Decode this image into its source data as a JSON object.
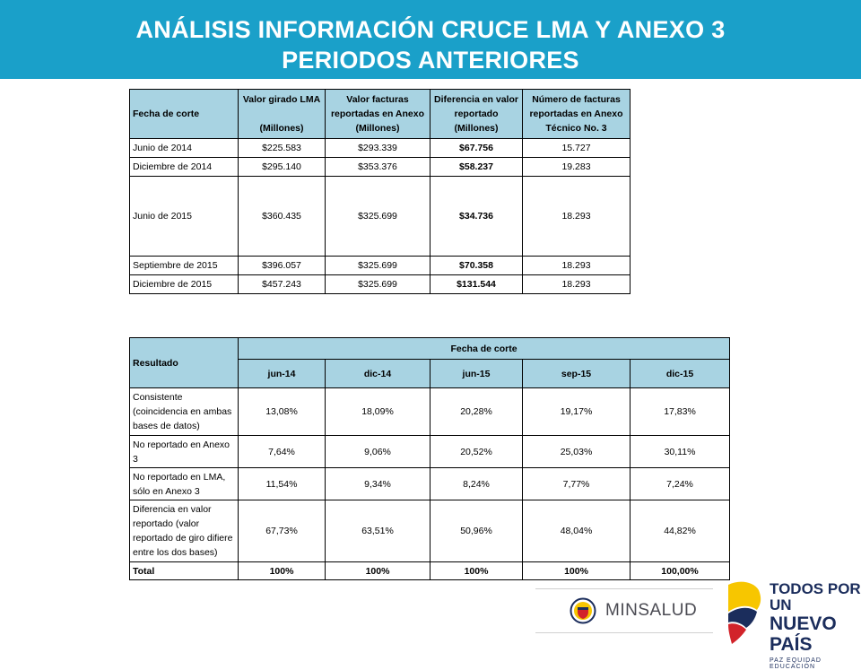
{
  "title": {
    "line1": "ANÁLISIS INFORMACIÓN CRUCE LMA Y ANEXO 3",
    "line2": "PERIODOS ANTERIORES"
  },
  "table1": {
    "headers": [
      {
        "main": "Fecha de corte",
        "sub": ""
      },
      {
        "main": "Valor girado LMA",
        "sub": "(Millones)"
      },
      {
        "main": "Valor facturas reportadas en Anexo",
        "sub": "(Millones)"
      },
      {
        "main": "Diferencia en valor reportado",
        "sub": "(Millones)"
      },
      {
        "main": "Número de facturas reportadas en Anexo Técnico No. 3",
        "sub": ""
      }
    ],
    "rows": [
      {
        "fecha": "Junio de 2014",
        "girado": "$225.583",
        "facturas": "$293.339",
        "diferencia": "$67.756",
        "numero": "15.727"
      },
      {
        "fecha": "Diciembre de 2014",
        "girado": "$295.140",
        "facturas": "$353.376",
        "diferencia": "$58.237",
        "numero": "19.283"
      },
      {
        "fecha": "Junio de 2015",
        "girado": "$360.435",
        "facturas": "$325.699",
        "diferencia": "$34.736",
        "numero": "18.293"
      },
      {
        "fecha": "Septiembre de 2015",
        "girado": "$396.057",
        "facturas": "$325.699",
        "diferencia": "$70.358",
        "numero": "18.293"
      },
      {
        "fecha": "Diciembre de 2015",
        "girado": "$457.243",
        "facturas": "$325.699",
        "diferencia": "$131.544",
        "numero": "18.293"
      }
    ]
  },
  "table2": {
    "resultado_label": "Resultado",
    "fecha_label": "Fecha de corte",
    "periods": [
      "jun-14",
      "dic-14",
      "jun-15",
      "sep-15",
      "dic-15"
    ],
    "rows": [
      {
        "label": "Consistente (coincidencia en ambas bases de datos)",
        "values": [
          "13,08%",
          "18,09%",
          "20,28%",
          "19,17%",
          "17,83%"
        ]
      },
      {
        "label": "No reportado en Anexo 3",
        "values": [
          "7,64%",
          "9,06%",
          "20,52%",
          "25,03%",
          "30,11%"
        ]
      },
      {
        "label": "No reportado en LMA, sólo en Anexo 3",
        "values": [
          "11,54%",
          "9,34%",
          "8,24%",
          "7,77%",
          "7,24%"
        ]
      },
      {
        "label": "Diferencia en valor reportado (valor reportado de giro difiere entre los dos bases)",
        "values": [
          "67,73%",
          "63,51%",
          "50,96%",
          "48,04%",
          "44,82%"
        ]
      },
      {
        "label": "Total",
        "values": [
          "100%",
          "100%",
          "100%",
          "100%",
          "100,00%"
        ]
      }
    ]
  },
  "logos": {
    "minsalud": "MINSALUD",
    "pais_line1": "TODOS POR UN",
    "pais_line2": "NUEVO PAÍS",
    "pais_tagline": "PAZ EQUIDAD EDUCACIÓN",
    "colors": {
      "blue": "#1aa0c9",
      "navy": "#1b2d5c",
      "yellow": "#f7c600",
      "red": "#d2232a"
    }
  }
}
